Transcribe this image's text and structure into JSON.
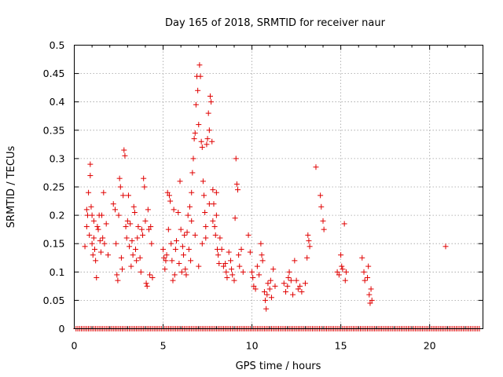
{
  "chart_data": {
    "type": "scatter",
    "title": "Day 165 of 2018, SRMTID for receiver naur",
    "xlabel": "GPS time / hours",
    "ylabel": "SRMTID / TECUs",
    "xlim": [
      0,
      23
    ],
    "ylim": [
      0,
      0.5
    ],
    "xticks": [
      0,
      5,
      10,
      15,
      20
    ],
    "yticks": [
      0,
      0.05,
      0.1,
      0.15,
      0.2,
      0.25,
      0.3,
      0.35,
      0.4,
      0.45,
      0.5
    ],
    "xtick_labels": [
      "0",
      "5",
      "10",
      "15",
      "20"
    ],
    "ytick_labels": [
      "0",
      "0.05",
      "0.1",
      "0.15",
      "0.2",
      "0.25",
      "0.3",
      "0.35",
      "0.4",
      "0.45",
      "0.5"
    ],
    "grid": true,
    "marker": "plus",
    "color": "#e00000",
    "zero_line": {
      "x_start": 0.1,
      "x_end": 22.8,
      "step": 0.1,
      "y": 0
    },
    "series": [
      {
        "name": "SRMTID",
        "points": [
          [
            0.6,
            0.145
          ],
          [
            0.7,
            0.21
          ],
          [
            0.7,
            0.18
          ],
          [
            0.75,
            0.2
          ],
          [
            0.8,
            0.24
          ],
          [
            0.85,
            0.165
          ],
          [
            0.9,
            0.29
          ],
          [
            0.9,
            0.27
          ],
          [
            0.95,
            0.215
          ],
          [
            1.0,
            0.2
          ],
          [
            1.0,
            0.15
          ],
          [
            1.05,
            0.13
          ],
          [
            1.1,
            0.19
          ],
          [
            1.1,
            0.16
          ],
          [
            1.15,
            0.14
          ],
          [
            1.2,
            0.12
          ],
          [
            1.25,
            0.09
          ],
          [
            1.3,
            0.18
          ],
          [
            1.35,
            0.175
          ],
          [
            1.4,
            0.2
          ],
          [
            1.45,
            0.155
          ],
          [
            1.5,
            0.135
          ],
          [
            1.55,
            0.2
          ],
          [
            1.6,
            0.16
          ],
          [
            1.65,
            0.24
          ],
          [
            1.7,
            0.15
          ],
          [
            1.8,
            0.185
          ],
          [
            1.9,
            0.13
          ],
          [
            2.2,
            0.22
          ],
          [
            2.3,
            0.21
          ],
          [
            2.35,
            0.15
          ],
          [
            2.4,
            0.095
          ],
          [
            2.45,
            0.085
          ],
          [
            2.5,
            0.2
          ],
          [
            2.55,
            0.265
          ],
          [
            2.6,
            0.25
          ],
          [
            2.65,
            0.125
          ],
          [
            2.7,
            0.105
          ],
          [
            2.75,
            0.235
          ],
          [
            2.8,
            0.315
          ],
          [
            2.85,
            0.305
          ],
          [
            2.9,
            0.18
          ],
          [
            2.95,
            0.16
          ],
          [
            3.0,
            0.19
          ],
          [
            3.05,
            0.235
          ],
          [
            3.1,
            0.145
          ],
          [
            3.15,
            0.185
          ],
          [
            3.2,
            0.11
          ],
          [
            3.25,
            0.155
          ],
          [
            3.3,
            0.13
          ],
          [
            3.35,
            0.215
          ],
          [
            3.4,
            0.205
          ],
          [
            3.45,
            0.14
          ],
          [
            3.5,
            0.12
          ],
          [
            3.55,
            0.16
          ],
          [
            3.6,
            0.18
          ],
          [
            3.7,
            0.125
          ],
          [
            3.75,
            0.1
          ],
          [
            3.8,
            0.175
          ],
          [
            3.85,
            0.165
          ],
          [
            3.9,
            0.265
          ],
          [
            3.95,
            0.25
          ],
          [
            4.0,
            0.19
          ],
          [
            4.05,
            0.08
          ],
          [
            4.1,
            0.075
          ],
          [
            4.15,
            0.21
          ],
          [
            4.2,
            0.175
          ],
          [
            4.25,
            0.095
          ],
          [
            4.3,
            0.18
          ],
          [
            4.35,
            0.15
          ],
          [
            4.4,
            0.09
          ],
          [
            5.0,
            0.14
          ],
          [
            5.05,
            0.125
          ],
          [
            5.1,
            0.105
          ],
          [
            5.15,
            0.12
          ],
          [
            5.2,
            0.13
          ],
          [
            5.25,
            0.24
          ],
          [
            5.3,
            0.175
          ],
          [
            5.35,
            0.235
          ],
          [
            5.4,
            0.225
          ],
          [
            5.45,
            0.15
          ],
          [
            5.5,
            0.12
          ],
          [
            5.55,
            0.085
          ],
          [
            5.6,
            0.21
          ],
          [
            5.65,
            0.095
          ],
          [
            5.7,
            0.14
          ],
          [
            5.75,
            0.155
          ],
          [
            5.85,
            0.205
          ],
          [
            5.9,
            0.115
          ],
          [
            5.95,
            0.26
          ],
          [
            6.0,
            0.175
          ],
          [
            6.05,
            0.1
          ],
          [
            6.1,
            0.145
          ],
          [
            6.15,
            0.13
          ],
          [
            6.2,
            0.165
          ],
          [
            6.25,
            0.105
          ],
          [
            6.3,
            0.095
          ],
          [
            6.35,
            0.17
          ],
          [
            6.4,
            0.2
          ],
          [
            6.45,
            0.14
          ],
          [
            6.5,
            0.215
          ],
          [
            6.55,
            0.12
          ],
          [
            6.6,
            0.24
          ],
          [
            6.65,
            0.275
          ],
          [
            6.7,
            0.3
          ],
          [
            6.75,
            0.335
          ],
          [
            6.8,
            0.345
          ],
          [
            6.85,
            0.395
          ],
          [
            6.9,
            0.445
          ],
          [
            6.95,
            0.42
          ],
          [
            7.0,
            0.36
          ],
          [
            7.05,
            0.465
          ],
          [
            7.1,
            0.445
          ],
          [
            7.15,
            0.33
          ],
          [
            7.2,
            0.32
          ],
          [
            7.25,
            0.26
          ],
          [
            7.3,
            0.235
          ],
          [
            7.35,
            0.205
          ],
          [
            7.4,
            0.18
          ],
          [
            7.45,
            0.325
          ],
          [
            7.5,
            0.335
          ],
          [
            7.55,
            0.38
          ],
          [
            7.6,
            0.35
          ],
          [
            7.65,
            0.41
          ],
          [
            7.7,
            0.4
          ],
          [
            7.75,
            0.33
          ],
          [
            7.8,
            0.245
          ],
          [
            7.85,
            0.22
          ],
          [
            7.9,
            0.18
          ],
          [
            7.95,
            0.165
          ],
          [
            8.0,
            0.2
          ],
          [
            8.05,
            0.14
          ],
          [
            8.1,
            0.13
          ],
          [
            8.15,
            0.115
          ],
          [
            8.2,
            0.16
          ],
          [
            7.0,
            0.11
          ],
          [
            7.2,
            0.15
          ],
          [
            6.8,
            0.165
          ],
          [
            6.6,
            0.19
          ],
          [
            7.4,
            0.16
          ],
          [
            7.6,
            0.22
          ],
          [
            7.8,
            0.19
          ],
          [
            8.0,
            0.24
          ],
          [
            8.3,
            0.14
          ],
          [
            8.4,
            0.11
          ],
          [
            8.5,
            0.115
          ],
          [
            8.55,
            0.1
          ],
          [
            8.6,
            0.09
          ],
          [
            8.7,
            0.135
          ],
          [
            8.8,
            0.12
          ],
          [
            8.85,
            0.105
          ],
          [
            8.9,
            0.095
          ],
          [
            9.0,
            0.085
          ],
          [
            9.05,
            0.195
          ],
          [
            9.1,
            0.3
          ],
          [
            9.15,
            0.255
          ],
          [
            9.2,
            0.245
          ],
          [
            9.25,
            0.13
          ],
          [
            9.3,
            0.11
          ],
          [
            9.4,
            0.14
          ],
          [
            9.5,
            0.1
          ],
          [
            9.8,
            0.165
          ],
          [
            9.9,
            0.135
          ],
          [
            10.0,
            0.1
          ],
          [
            10.05,
            0.09
          ],
          [
            10.1,
            0.075
          ],
          [
            10.2,
            0.07
          ],
          [
            10.3,
            0.11
          ],
          [
            10.4,
            0.095
          ],
          [
            10.5,
            0.15
          ],
          [
            10.55,
            0.13
          ],
          [
            10.6,
            0.12
          ],
          [
            10.7,
            0.065
          ],
          [
            10.75,
            0.05
          ],
          [
            10.8,
            0.035
          ],
          [
            10.85,
            0.06
          ],
          [
            10.9,
            0.08
          ],
          [
            11.0,
            0.07
          ],
          [
            11.05,
            0.085
          ],
          [
            11.1,
            0.055
          ],
          [
            11.2,
            0.105
          ],
          [
            11.3,
            0.075
          ],
          [
            11.8,
            0.08
          ],
          [
            11.9,
            0.065
          ],
          [
            12.0,
            0.075
          ],
          [
            12.05,
            0.09
          ],
          [
            12.1,
            0.1
          ],
          [
            12.2,
            0.085
          ],
          [
            12.3,
            0.06
          ],
          [
            12.4,
            0.12
          ],
          [
            12.5,
            0.085
          ],
          [
            12.6,
            0.07
          ],
          [
            12.7,
            0.075
          ],
          [
            12.8,
            0.065
          ],
          [
            13.0,
            0.08
          ],
          [
            13.1,
            0.125
          ],
          [
            13.15,
            0.165
          ],
          [
            13.2,
            0.155
          ],
          [
            13.25,
            0.145
          ],
          [
            13.6,
            0.285
          ],
          [
            13.85,
            0.235
          ],
          [
            13.9,
            0.215
          ],
          [
            14.0,
            0.19
          ],
          [
            14.05,
            0.175
          ],
          [
            14.8,
            0.1
          ],
          [
            14.9,
            0.095
          ],
          [
            15.0,
            0.13
          ],
          [
            15.05,
            0.11
          ],
          [
            15.1,
            0.105
          ],
          [
            15.2,
            0.185
          ],
          [
            15.25,
            0.085
          ],
          [
            15.3,
            0.1
          ],
          [
            16.2,
            0.125
          ],
          [
            16.3,
            0.1
          ],
          [
            16.35,
            0.085
          ],
          [
            16.5,
            0.09
          ],
          [
            16.55,
            0.11
          ],
          [
            16.6,
            0.06
          ],
          [
            16.65,
            0.045
          ],
          [
            16.7,
            0.07
          ],
          [
            16.75,
            0.05
          ],
          [
            20.9,
            0.145
          ]
        ]
      }
    ]
  }
}
